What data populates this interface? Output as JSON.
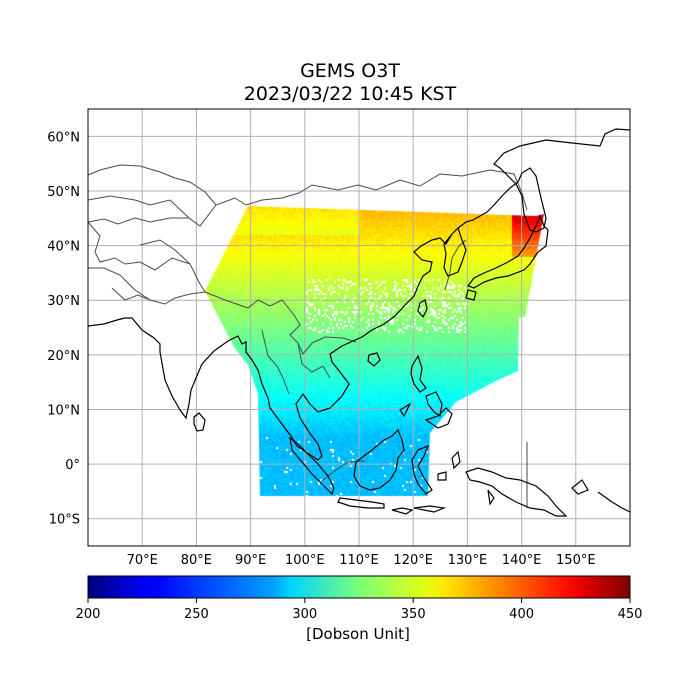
{
  "title": {
    "line1": "GEMS O3T",
    "line2": "2023/03/22 10:45 KST"
  },
  "map": {
    "product": "O3T",
    "lon_range": [
      60,
      160
    ],
    "lat_range": [
      -15,
      65
    ],
    "lon_ticks": [
      "70°E",
      "80°E",
      "90°E",
      "100°E",
      "110°E",
      "120°E",
      "130°E",
      "140°E",
      "150°E"
    ],
    "lat_ticks": [
      "60°N",
      "50°N",
      "40°N",
      "30°N",
      "20°N",
      "10°N",
      "0°",
      "10°S"
    ],
    "gridlines": true,
    "gridline_color": "#b0b0b0",
    "coastline_color": "#000000",
    "border_color": "#4a4a4a"
  },
  "colorbar": {
    "min": 200,
    "max": 450,
    "ticks": [
      "200",
      "250",
      "300",
      "350",
      "400",
      "450"
    ],
    "label": "[Dobson Unit]",
    "colormap": "jet"
  }
}
